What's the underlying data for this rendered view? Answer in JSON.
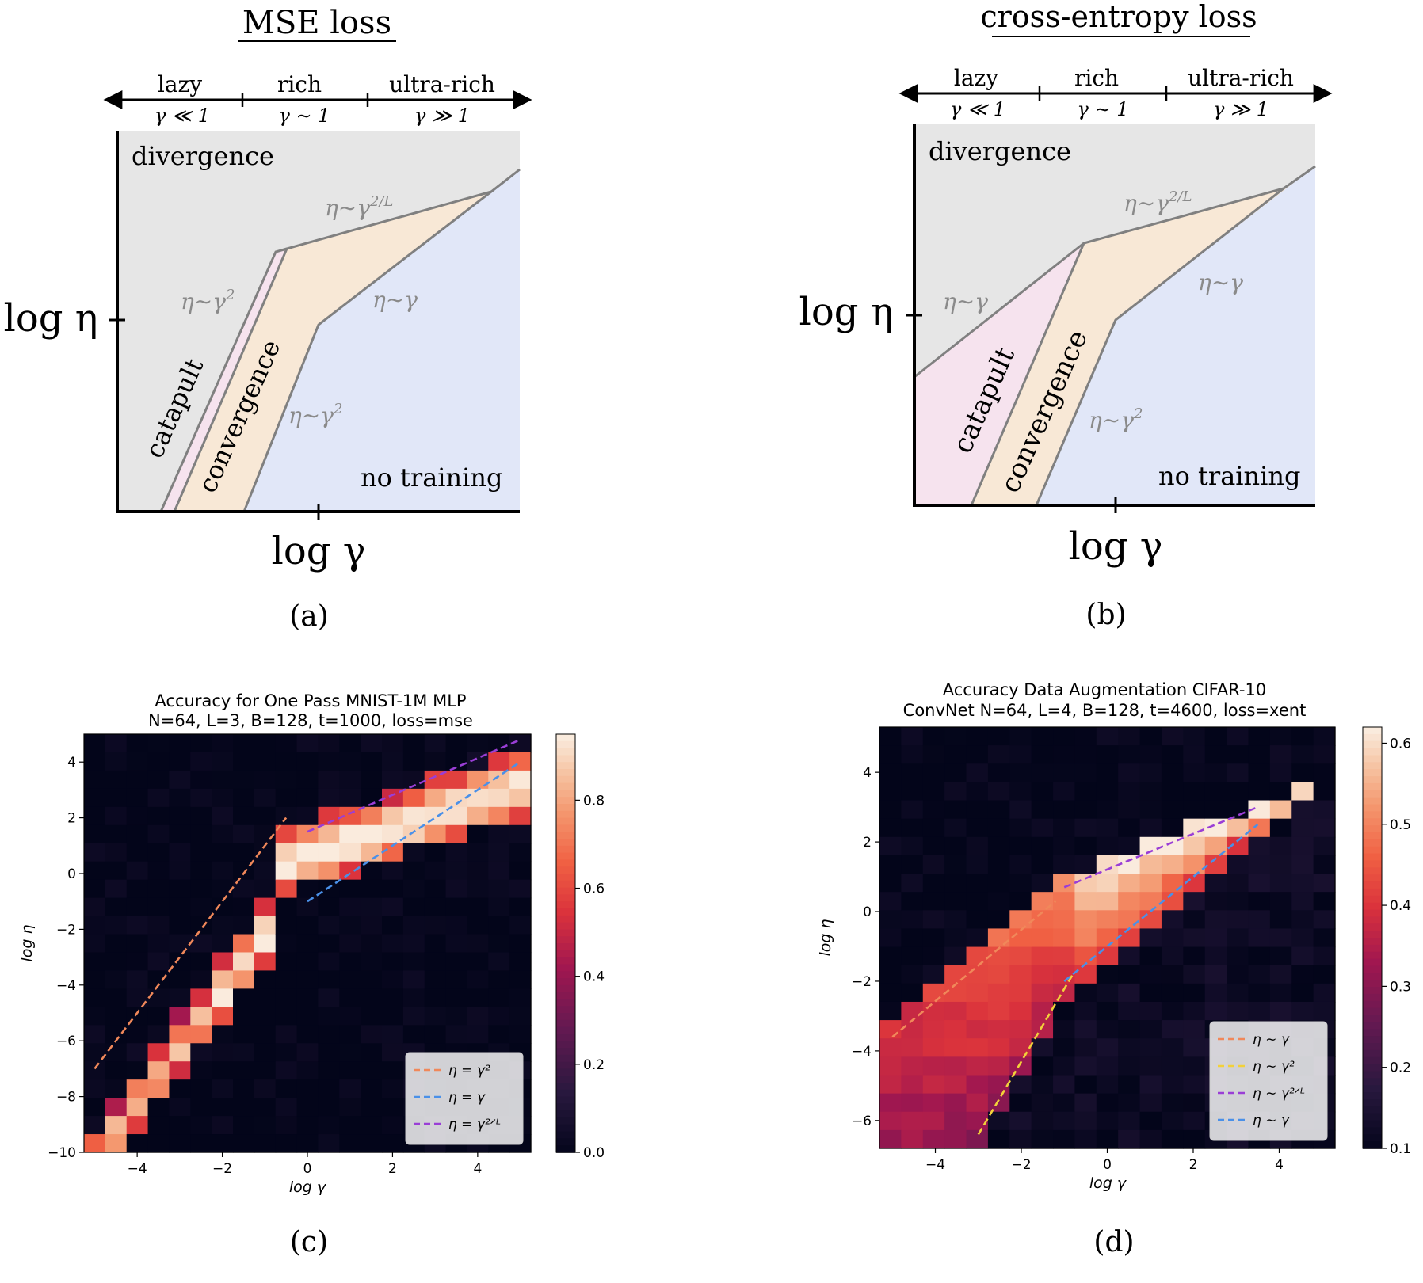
{
  "panels": [
    {
      "id": "a",
      "caption": "(a)",
      "title": "MSE loss",
      "regime_axis": [
        {
          "name": "lazy",
          "cond": "γ ≪ 1"
        },
        {
          "name": "rich",
          "cond": "γ ∼ 1"
        },
        {
          "name": "ultra-rich",
          "cond": "γ ≫ 1"
        }
      ],
      "xlabel": "log γ",
      "ylabel": "log η",
      "regions": {
        "divergence": "divergence",
        "catapult": "catapult",
        "convergence": "convergence",
        "no_training": "no training"
      },
      "boundary_labels": [
        "η∼γ²",
        "η∼γ^{2/L}",
        "η∼γ",
        "η∼γ²"
      ]
    },
    {
      "id": "b",
      "caption": "(b)",
      "title": "cross-entropy loss",
      "regime_axis": [
        {
          "name": "lazy",
          "cond": "γ ≪ 1"
        },
        {
          "name": "rich",
          "cond": "γ ∼ 1"
        },
        {
          "name": "ultra-rich",
          "cond": "γ ≫ 1"
        }
      ],
      "xlabel": "log γ",
      "ylabel": "log η",
      "regions": {
        "divergence": "divergence",
        "catapult": "catapult",
        "convergence": "convergence",
        "no_training": "no training"
      },
      "boundary_labels": [
        "η∼γ",
        "η∼γ^{2/L}",
        "η∼γ",
        "η∼γ²"
      ]
    }
  ],
  "colors": {
    "divergence": "#e6e6e6",
    "catapult": "#f6e3ee",
    "convergence": "#f8e8d6",
    "no_training": "#e1e7f8",
    "boundary": "#808080",
    "fit_gamma_sq": "#f0885a",
    "fit_gamma": "#4a90e8",
    "fit_gamma_2L": "#9a3ed6",
    "fit_yellow": "#f2d13a"
  },
  "chart_data": [
    {
      "type": "heatmap",
      "panel": "c",
      "caption": "(c)",
      "title": "Accuracy for One Pass MNIST-1M MLP",
      "subtitle": "N=64, L=3, B=128, t=1000, loss=mse",
      "xlabel": "log γ",
      "ylabel": "log η",
      "xlim": [
        -5.25,
        5.25
      ],
      "ylim": [
        -10.0,
        5.0
      ],
      "xticks": [
        -4,
        -2,
        0,
        2,
        4
      ],
      "xtick_labels": [
        "−4",
        "−2",
        "0",
        "2",
        "4"
      ],
      "yticks": [
        -10,
        -8,
        -6,
        -4,
        -2,
        0,
        2,
        4
      ],
      "ytick_labels": [
        "−10",
        "−8",
        "−6",
        "−4",
        "−2",
        "0",
        "2",
        "4"
      ],
      "colorbar": {
        "min": 0.0,
        "max": 0.95,
        "ticks": [
          0.0,
          0.2,
          0.4,
          0.6,
          0.8
        ],
        "tick_labels": [
          "0.0",
          "0.2",
          "0.4",
          "0.6",
          "0.8"
        ]
      },
      "band": {
        "valley_lo": "y = 2x + 0.7 (x<-0.5); y = 0.5x + 1.5 (x≥-0.5)",
        "valley_hi": "y = 2x - 1 (x<0); y = 0.5x + 0 (x≥0)"
      },
      "legend": {
        "position": "lower-right",
        "entries": [
          {
            "label": "η = γ²",
            "color": "#f0885a"
          },
          {
            "label": "η = γ",
            "color": "#4a90e8"
          },
          {
            "label": "η = γ^{2/L}",
            "color": "#9a3ed6"
          }
        ]
      },
      "series": [
        {
          "name": "η = γ²",
          "x": [
            -5.0,
            -0.5
          ],
          "y": [
            -7.0,
            2.0
          ]
        },
        {
          "name": "η = γ",
          "x": [
            0.0,
            5.0
          ],
          "y": [
            -1.0,
            4.0
          ]
        },
        {
          "name": "η = γ^{2/L}",
          "x": [
            0.0,
            5.0
          ],
          "y": [
            1.5,
            4.8
          ]
        }
      ],
      "peak_accuracy": 0.93
    },
    {
      "type": "heatmap",
      "panel": "d",
      "caption": "(d)",
      "title": "Accuracy Data Augmentation CIFAR-10",
      "subtitle": "ConvNet N=64, L=4, B=128, t=4600, loss=xent",
      "xlabel": "log γ",
      "ylabel": "log η",
      "xlim": [
        -5.3,
        5.3
      ],
      "ylim": [
        -6.8,
        5.3
      ],
      "xticks": [
        -4,
        -2,
        0,
        2,
        4
      ],
      "xtick_labels": [
        "−4",
        "−2",
        "0",
        "2",
        "4"
      ],
      "yticks": [
        -6,
        -4,
        -2,
        0,
        2,
        4
      ],
      "ytick_labels": [
        "−6",
        "−4",
        "−2",
        "0",
        "2",
        "4"
      ],
      "colorbar": {
        "min": 0.1,
        "max": 0.62,
        "ticks": [
          0.1,
          0.2,
          0.3,
          0.4,
          0.5,
          0.6
        ],
        "tick_labels": [
          "0.1",
          "0.2",
          "0.3",
          "0.4",
          "0.5",
          "0.6"
        ]
      },
      "legend": {
        "position": "lower-right",
        "entries": [
          {
            "label": "η ∼ γ",
            "color": "#f0885a"
          },
          {
            "label": "η ∼ γ²",
            "color": "#f2d13a"
          },
          {
            "label": "η ∼ γ^{2/L}",
            "color": "#9a3ed6"
          },
          {
            "label": "η ∼ γ",
            "color": "#4a90e8"
          }
        ]
      },
      "series": [
        {
          "name": "η ∼ γ",
          "x": [
            -5.0,
            -1.2
          ],
          "y": [
            -3.6,
            0.3
          ]
        },
        {
          "name": "η ∼ γ²",
          "x": [
            -3.0,
            -0.8
          ],
          "y": [
            -6.4,
            -1.8
          ]
        },
        {
          "name": "η ∼ γ^{2/L}",
          "x": [
            -1.0,
            3.5
          ],
          "y": [
            0.7,
            3.0
          ]
        },
        {
          "name": "η ∼ γ",
          "x": [
            -1.0,
            3.5
          ],
          "y": [
            -2.0,
            2.5
          ]
        }
      ],
      "peak_accuracy": 0.6
    }
  ]
}
